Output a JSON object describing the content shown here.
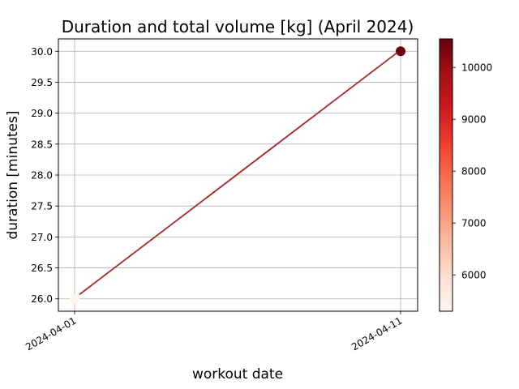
{
  "chart_data": {
    "type": "scatter",
    "title": "Duration and total volume [kg] (April 2024)",
    "xlabel": "workout date",
    "ylabel": "duration [minutes]",
    "x_ticks": [
      "2024-04-01",
      "2024-04-11"
    ],
    "y_ticks": [
      "26.0",
      "26.5",
      "27.0",
      "27.5",
      "28.0",
      "28.5",
      "29.0",
      "29.5",
      "30.0"
    ],
    "ylim": [
      25.8,
      30.2
    ],
    "grid": true,
    "points": [
      {
        "date": "2024-04-01",
        "duration": 26.0,
        "volume": 5300
      },
      {
        "date": "2024-04-11",
        "duration": 30.0,
        "volume": 10500
      }
    ],
    "trend_line": {
      "color": "#a52a2a",
      "start": {
        "date": "2024-04-01",
        "duration": 26.07
      },
      "end": {
        "date": "2024-04-11",
        "duration": 29.98
      }
    },
    "colorbar": {
      "colormap": "Reds",
      "range": [
        5300,
        10550
      ],
      "ticks": [
        "6000",
        "7000",
        "8000",
        "9000",
        "10000"
      ]
    }
  }
}
